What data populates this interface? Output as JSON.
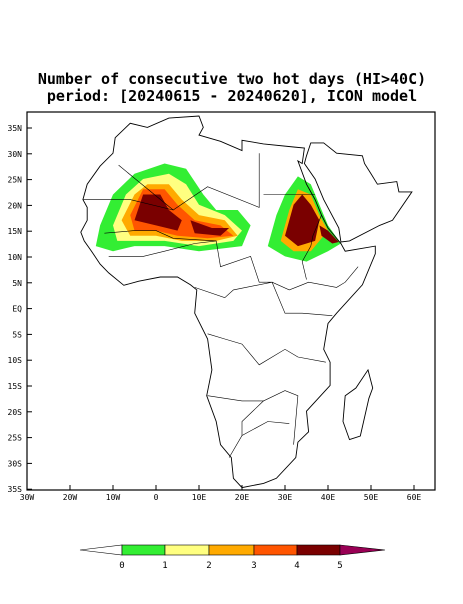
{
  "title": [
    "Number of consecutive two hot days (HI>40C)",
    "period: [20240615 - 20240620], ICON model"
  ],
  "lon_labels": [
    "30W",
    "20W",
    "10W",
    "0",
    "10E",
    "20E",
    "30E",
    "40E",
    "50E",
    "60E"
  ],
  "lat_labels": [
    "35N",
    "30N",
    "25N",
    "20N",
    "15N",
    "10N",
    "5N",
    "EQ",
    "5S",
    "10S",
    "15S",
    "20S",
    "25S",
    "30S",
    "35S"
  ],
  "colorbar": {
    "labels": [
      "0",
      "1",
      "2",
      "3",
      "4",
      "5"
    ],
    "colors": [
      "#ffffff",
      "#33ee33",
      "#ffff80",
      "#ffaa00",
      "#ff5500",
      "#7a0000",
      "#990055"
    ]
  }
}
